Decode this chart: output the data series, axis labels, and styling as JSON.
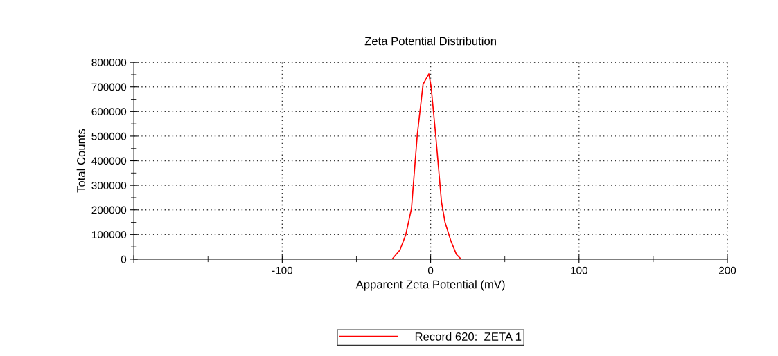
{
  "chart_data": {
    "type": "line",
    "title": "Zeta Potential Distribution",
    "xlabel": "Apparent Zeta Potential (mV)",
    "ylabel": "Total Counts",
    "xlim": [
      -200,
      200
    ],
    "xticks": [
      {
        "value": -200,
        "label": null
      },
      -100,
      0,
      100,
      200
    ],
    "ylim": [
      0,
      800000
    ],
    "yticks": [
      0,
      100000,
      200000,
      300000,
      400000,
      500000,
      600000,
      700000,
      800000
    ],
    "grid": true,
    "legend": "bottom",
    "marker": "none",
    "line_style": "solid",
    "series": [
      {
        "name": "Record 620:  ZETA 1",
        "color": "#ff0000",
        "x": [
          -150,
          -100,
          -50,
          -26,
          -20.7,
          -16.8,
          -12.9,
          -9.0,
          -5.1,
          -1.2,
          0.3,
          3.4,
          7.3,
          9.7,
          13.6,
          17.4,
          20.6,
          50,
          100,
          150
        ],
        "values": [
          0,
          0,
          0,
          0,
          37000,
          98000,
          206000,
          505000,
          711000,
          753000,
          702000,
          505000,
          234000,
          150000,
          75000,
          19000,
          0,
          0,
          0,
          0
        ]
      }
    ]
  }
}
